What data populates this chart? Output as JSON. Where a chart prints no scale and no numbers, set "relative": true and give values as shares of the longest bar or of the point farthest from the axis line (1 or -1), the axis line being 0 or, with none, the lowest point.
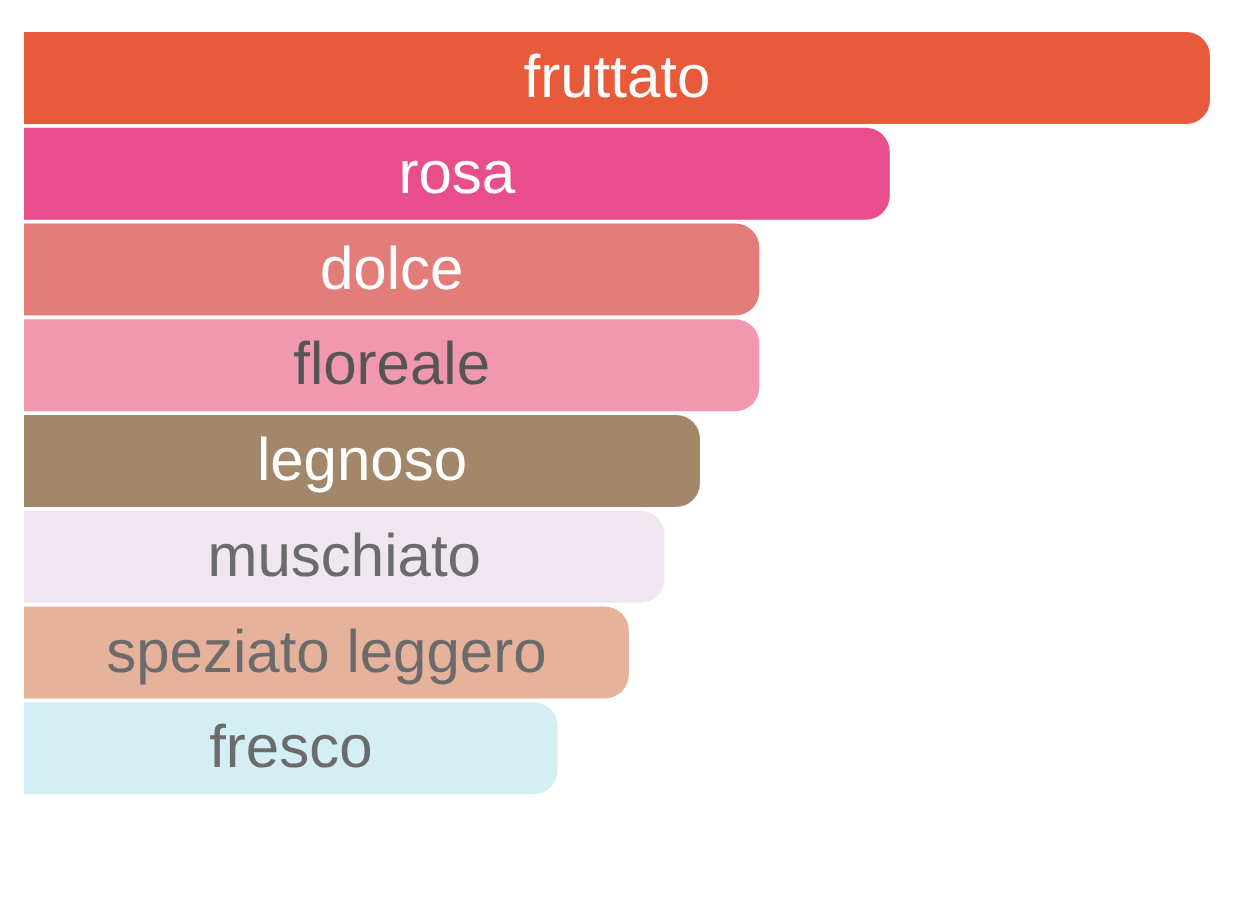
{
  "chart_data": {
    "type": "bar",
    "orientation": "horizontal",
    "relative": true,
    "categories": [
      "fruttato",
      "rosa",
      "dolce",
      "floreale",
      "legnoso",
      "muschiato",
      "speziato leggero",
      "fresco"
    ],
    "values": [
      1,
      0.73,
      0.62,
      0.62,
      0.57,
      0.54,
      0.51,
      0.45
    ],
    "colors": [
      "#e95a3a",
      "#e94d8b",
      "#e27d7a",
      "#f198b0",
      "#a3876b",
      "#efe6f0",
      "#e7b29c",
      "#d3eff3"
    ]
  }
}
